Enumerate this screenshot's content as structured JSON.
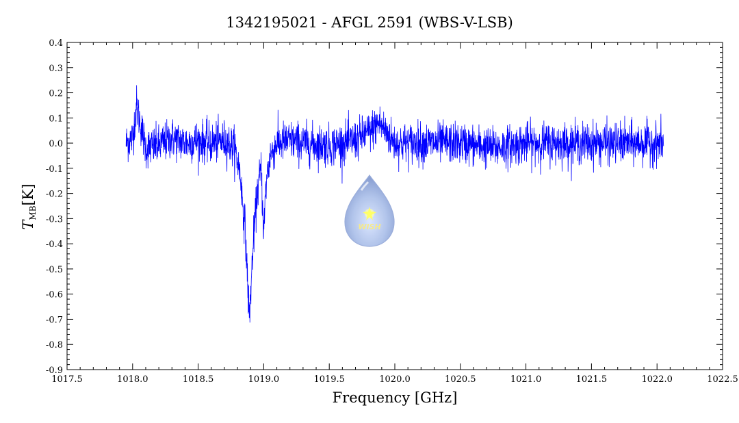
{
  "chart_data": {
    "type": "line",
    "title": "1342195021 - AFGL 2591 (WBS-V-LSB)",
    "xlabel": "Frequency [GHz]",
    "ylabel_main": "T",
    "ylabel_sub": "MB",
    "ylabel_unit": "[K]",
    "xlim": [
      1017.5,
      1022.5
    ],
    "ylim": [
      -0.9,
      0.4
    ],
    "xticks": [
      1017.5,
      1018.0,
      1018.5,
      1019.0,
      1019.5,
      1020.0,
      1020.5,
      1021.0,
      1021.5,
      1022.0,
      1022.5
    ],
    "xtick_labels": [
      "1017.5",
      "1018.0",
      "1018.5",
      "1019.0",
      "1019.5",
      "1020.0",
      "1020.5",
      "1021.0",
      "1021.5",
      "1022.0",
      "1022.5"
    ],
    "yticks": [
      0.4,
      0.3,
      0.2,
      0.1,
      0.0,
      -0.1,
      -0.2,
      -0.3,
      -0.4,
      -0.5,
      -0.6,
      -0.7,
      -0.8,
      -0.9
    ],
    "ytick_labels": [
      "0.4",
      "0.3",
      "0.2",
      "0.1",
      "0.0",
      "-0.1",
      "-0.2",
      "-0.3",
      "-0.4",
      "-0.5",
      "-0.6",
      "-0.7",
      "-0.8",
      "-0.9"
    ],
    "grid": false,
    "series_color": "#0000ff",
    "noise_rms": 0.04,
    "series": [
      {
        "x": [
          1017.95,
          1018.0,
          1018.03,
          1018.1,
          1018.2,
          1018.3,
          1018.4,
          1018.5,
          1018.6,
          1018.7,
          1018.78,
          1018.82,
          1018.86,
          1018.89,
          1018.92,
          1018.95,
          1018.98,
          1019.0,
          1019.02,
          1019.05,
          1019.1,
          1019.2,
          1019.3,
          1019.5,
          1019.7,
          1019.82,
          1019.88,
          1020.0,
          1020.5,
          1020.75,
          1021.0,
          1021.5,
          1022.0,
          1022.05
        ],
        "values": [
          0.0,
          0.02,
          0.15,
          -0.02,
          -0.01,
          0.02,
          0.0,
          0.01,
          0.0,
          0.01,
          -0.02,
          -0.12,
          -0.35,
          -0.7,
          -0.4,
          -0.2,
          -0.1,
          -0.35,
          -0.15,
          -0.05,
          0.0,
          0.01,
          0.0,
          -0.01,
          0.01,
          0.05,
          0.08,
          0.0,
          0.0,
          -0.02,
          0.0,
          0.0,
          0.0,
          0.0
        ]
      }
    ]
  },
  "logo": {
    "text": "WISH",
    "fill_color": "#9db4e6",
    "star_color": "#ffff66"
  }
}
